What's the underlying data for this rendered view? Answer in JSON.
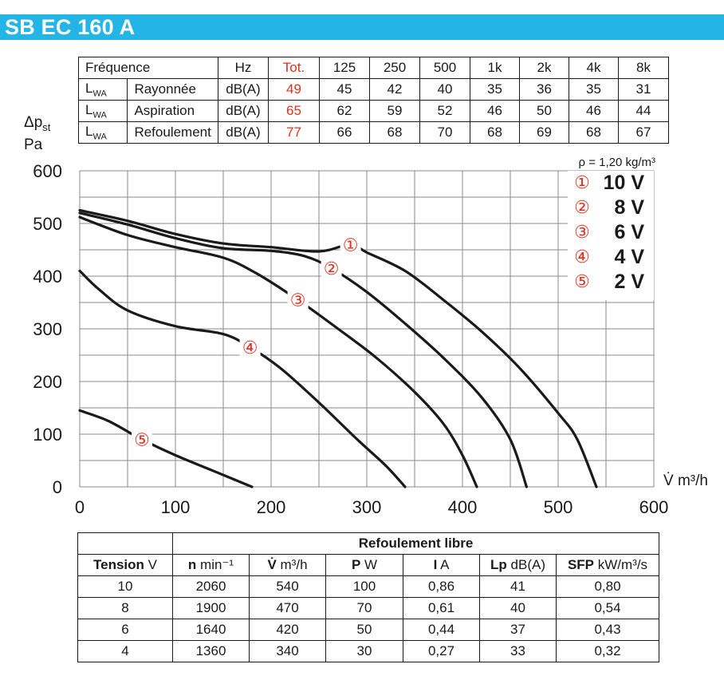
{
  "title": "SB EC 160 A",
  "sound_table": {
    "header": {
      "label": "Fréquence",
      "unit": "Hz",
      "tot": "Tot.",
      "bands": [
        "125",
        "250",
        "500",
        "1k",
        "2k",
        "4k",
        "8k"
      ]
    },
    "rows": [
      {
        "lwa": "L",
        "sub": "WA",
        "label": "Rayonnée",
        "unit": "dB(A)",
        "tot": "49",
        "values": [
          "45",
          "42",
          "40",
          "35",
          "36",
          "35",
          "31"
        ]
      },
      {
        "lwa": "L",
        "sub": "WA",
        "label": "Aspiration",
        "unit": "dB(A)",
        "tot": "65",
        "values": [
          "62",
          "59",
          "52",
          "46",
          "50",
          "46",
          "44"
        ]
      },
      {
        "lwa": "L",
        "sub": "WA",
        "label": "Refoulement",
        "unit": "dB(A)",
        "tot": "77",
        "values": [
          "66",
          "68",
          "70",
          "68",
          "69",
          "68",
          "67"
        ]
      }
    ]
  },
  "y_axis_label_1": "Δp",
  "y_axis_label_sub": "st",
  "y_axis_label_2": "Pa",
  "x_axis_label": "V̇ m³/h",
  "density_label": "ρ = 1,20 kg/m³",
  "colors": {
    "accent": "#23b5e6",
    "red": "#e0301e",
    "curve": "#1a1a1a",
    "grid": "#8a8a8a"
  },
  "chart_data": {
    "type": "line",
    "xlabel": "V̇ m³/h",
    "ylabel": "Δpst Pa",
    "xlim": [
      0,
      600
    ],
    "ylim": [
      0,
      600
    ],
    "x_ticks": [
      "0",
      "100",
      "200",
      "300",
      "400",
      "500",
      "600"
    ],
    "y_ticks": [
      "0",
      "100",
      "200",
      "300",
      "400",
      "500",
      "600"
    ],
    "grid": true,
    "legend_position": "top-right",
    "series": [
      {
        "name": "10 V",
        "marker": "①",
        "marker_at": [
          283,
          460
        ],
        "points": [
          [
            0,
            525
          ],
          [
            50,
            505
          ],
          [
            100,
            480
          ],
          [
            150,
            462
          ],
          [
            200,
            455
          ],
          [
            250,
            447
          ],
          [
            283,
            460
          ],
          [
            300,
            445
          ],
          [
            340,
            410
          ],
          [
            380,
            355
          ],
          [
            420,
            295
          ],
          [
            460,
            225
          ],
          [
            500,
            140
          ],
          [
            520,
            90
          ],
          [
            540,
            0
          ]
        ]
      },
      {
        "name": "8 V",
        "marker": "②",
        "marker_at": [
          263,
          415
        ],
        "points": [
          [
            0,
            520
          ],
          [
            50,
            498
          ],
          [
            100,
            472
          ],
          [
            150,
            453
          ],
          [
            200,
            448
          ],
          [
            235,
            438
          ],
          [
            263,
            415
          ],
          [
            300,
            370
          ],
          [
            340,
            310
          ],
          [
            380,
            245
          ],
          [
            420,
            170
          ],
          [
            450,
            90
          ],
          [
            467,
            0
          ]
        ]
      },
      {
        "name": "6 V",
        "marker": "③",
        "marker_at": [
          228,
          355
        ],
        "points": [
          [
            0,
            512
          ],
          [
            50,
            478
          ],
          [
            100,
            455
          ],
          [
            150,
            435
          ],
          [
            185,
            405
          ],
          [
            228,
            355
          ],
          [
            270,
            300
          ],
          [
            310,
            245
          ],
          [
            350,
            180
          ],
          [
            380,
            120
          ],
          [
            400,
            60
          ],
          [
            415,
            0
          ]
        ]
      },
      {
        "name": "4 V",
        "marker": "④",
        "marker_at": [
          178,
          265
        ],
        "points": [
          [
            0,
            410
          ],
          [
            20,
            375
          ],
          [
            50,
            335
          ],
          [
            100,
            305
          ],
          [
            150,
            290
          ],
          [
            178,
            265
          ],
          [
            210,
            225
          ],
          [
            250,
            160
          ],
          [
            290,
            90
          ],
          [
            320,
            40
          ],
          [
            340,
            0
          ]
        ]
      },
      {
        "name": "2 V",
        "marker": "⑤",
        "marker_at": [
          65,
          90
        ],
        "points": [
          [
            0,
            145
          ],
          [
            30,
            125
          ],
          [
            65,
            90
          ],
          [
            100,
            60
          ],
          [
            140,
            30
          ],
          [
            180,
            0
          ]
        ]
      }
    ]
  },
  "perf_table": {
    "group_header": "Refoulement libre",
    "headers": [
      {
        "bold": "Tension",
        "rest": " V"
      },
      {
        "bold": "n",
        "rest": " min⁻¹"
      },
      {
        "bold": "V̇",
        "rest": " m³/h"
      },
      {
        "bold": "P",
        "rest": " W"
      },
      {
        "bold": "I",
        "rest": " A"
      },
      {
        "bold": "Lp",
        "rest": " dB(A)"
      },
      {
        "bold": "SFP",
        "rest": " kW/m³/s"
      }
    ],
    "rows": [
      [
        "10",
        "2060",
        "540",
        "100",
        "0,86",
        "41",
        "0,80"
      ],
      [
        "8",
        "1900",
        "470",
        "70",
        "0,61",
        "40",
        "0,54"
      ],
      [
        "6",
        "1640",
        "420",
        "50",
        "0,44",
        "37",
        "0,43"
      ],
      [
        "4",
        "1360",
        "340",
        "30",
        "0,27",
        "33",
        "0,32"
      ]
    ]
  }
}
